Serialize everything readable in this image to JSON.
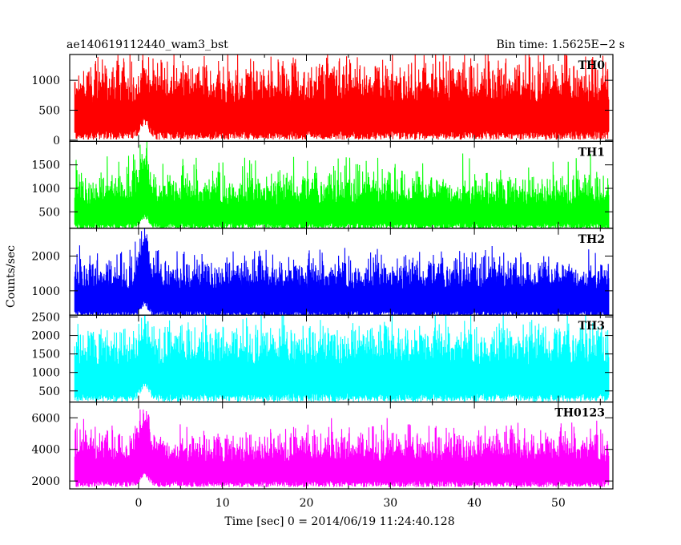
{
  "chart_data": {
    "type": "line",
    "title": "ae140619112440_wam3_bst",
    "bin_time_label": "Bin time: 1.5625E−2 s",
    "xlabel": "Time [sec] 0 = 2014/06/19 11:24:40.128",
    "ylabel": "Counts/sec",
    "xlim": [
      -8.2,
      56.5
    ],
    "x_ticks": [
      0,
      10,
      20,
      30,
      40,
      50
    ],
    "x_tick_labels": [
      "0",
      "10",
      "20",
      "30",
      "40",
      "50"
    ],
    "data_range_x": [
      -7.6,
      56.0
    ],
    "burst_time": 0.7,
    "grid": false,
    "legend": "none",
    "panels": [
      {
        "name": "TH0",
        "color": "#ff0000",
        "ylim": [
          -20,
          1430
        ],
        "y_ticks": [
          0,
          500,
          1000
        ],
        "y_tick_labels": [
          "0",
          "500",
          "1000"
        ],
        "mean": 620,
        "band_low": 150,
        "band_high": 1100,
        "spike_max": 1430,
        "burst_peak": 1300
      },
      {
        "name": "TH1",
        "color": "#00ff00",
        "ylim": [
          150,
          2000
        ],
        "y_ticks": [
          500,
          1000,
          1500
        ],
        "y_tick_labels": [
          "500",
          "1000",
          "1500"
        ],
        "mean": 650,
        "band_low": 260,
        "band_high": 1150,
        "spike_max": 1750,
        "burst_peak": 1950
      },
      {
        "name": "TH2",
        "color": "#0000ff",
        "ylim": [
          300,
          2800
        ],
        "y_ticks": [
          1000,
          2000
        ],
        "y_tick_labels": [
          "1000",
          "2000"
        ],
        "mean": 1050,
        "band_low": 420,
        "band_high": 1600,
        "spike_max": 2200,
        "burst_peak": 2800
      },
      {
        "name": "TH3",
        "color": "#00ffff",
        "ylim": [
          200,
          2550
        ],
        "y_ticks": [
          500,
          1000,
          1500,
          2000,
          2500
        ],
        "y_tick_labels": [
          "500",
          "1000",
          "1500",
          "2000",
          "2500"
        ],
        "mean": 1200,
        "band_low": 430,
        "band_high": 1900,
        "spike_max": 2300,
        "burst_peak": 2450
      },
      {
        "name": "TH0123",
        "color": "#ff00ff",
        "ylim": [
          1500,
          7000
        ],
        "y_ticks": [
          2000,
          4000,
          6000
        ],
        "y_tick_labels": [
          "2000",
          "4000",
          "6000"
        ],
        "mean": 3200,
        "band_low": 2000,
        "band_high": 4600,
        "spike_max": 5600,
        "burst_peak": 7000
      }
    ]
  }
}
